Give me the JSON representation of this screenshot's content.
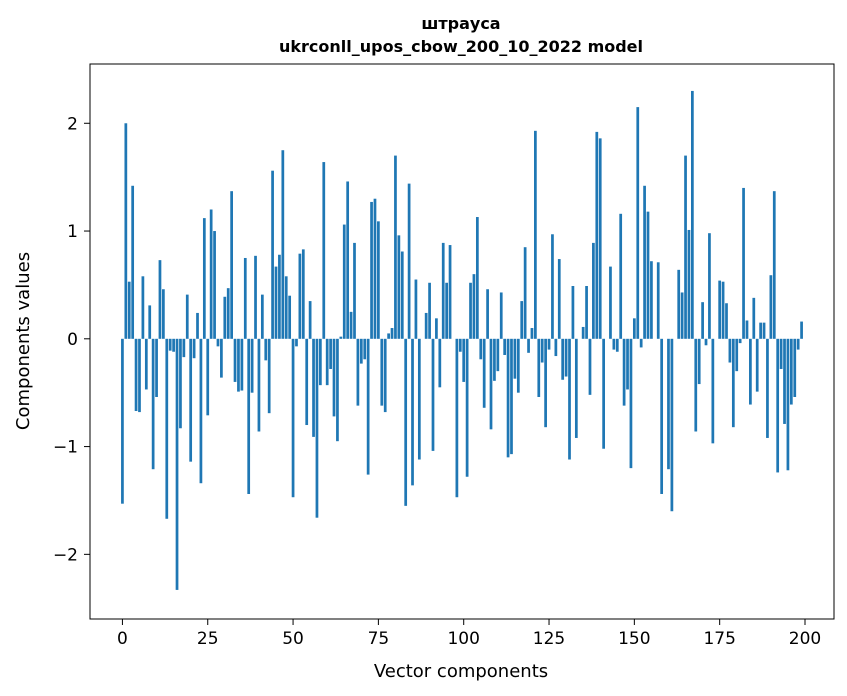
{
  "chart_data": {
    "type": "bar",
    "title_lines": [
      "штрауса",
      "ukrconll_upos_cbow_200_10_2022 model"
    ],
    "xlabel": "Vector components",
    "ylabel": "Components values",
    "xlim": [
      -9.5,
      208.5
    ],
    "ylim": [
      -2.6,
      2.55
    ],
    "xticks": [
      0,
      25,
      50,
      75,
      100,
      125,
      150,
      175,
      200
    ],
    "yticks": [
      -2,
      -1,
      0,
      1,
      2
    ],
    "ytick_labels": [
      "−2",
      "−1",
      "0",
      "1",
      "2"
    ],
    "bar_color": "#1f77b4",
    "grid": false,
    "x": [
      0,
      1,
      2,
      3,
      4,
      5,
      6,
      7,
      8,
      9,
      10,
      11,
      12,
      13,
      14,
      15,
      16,
      17,
      18,
      19,
      20,
      21,
      22,
      23,
      24,
      25,
      26,
      27,
      28,
      29,
      30,
      31,
      32,
      33,
      34,
      35,
      36,
      37,
      38,
      39,
      40,
      41,
      42,
      43,
      44,
      45,
      46,
      47,
      48,
      49,
      50,
      51,
      52,
      53,
      54,
      55,
      56,
      57,
      58,
      59,
      60,
      61,
      62,
      63,
      64,
      65,
      66,
      67,
      68,
      69,
      70,
      71,
      72,
      73,
      74,
      75,
      76,
      77,
      78,
      79,
      80,
      81,
      82,
      83,
      84,
      85,
      86,
      87,
      88,
      89,
      90,
      91,
      92,
      93,
      94,
      95,
      96,
      97,
      98,
      99,
      100,
      101,
      102,
      103,
      104,
      105,
      106,
      107,
      108,
      109,
      110,
      111,
      112,
      113,
      114,
      115,
      116,
      117,
      118,
      119,
      120,
      121,
      122,
      123,
      124,
      125,
      126,
      127,
      128,
      129,
      130,
      131,
      132,
      133,
      134,
      135,
      136,
      137,
      138,
      139,
      140,
      141,
      142,
      143,
      144,
      145,
      146,
      147,
      148,
      149,
      150,
      151,
      152,
      153,
      154,
      155,
      156,
      157,
      158,
      159,
      160,
      161,
      162,
      163,
      164,
      165,
      166,
      167,
      168,
      169,
      170,
      171,
      172,
      173,
      174,
      175,
      176,
      177,
      178,
      179,
      180,
      181,
      182,
      183,
      184,
      185,
      186,
      187,
      188,
      189,
      190,
      191,
      192,
      193,
      194,
      195,
      196,
      197,
      198,
      199
    ],
    "values": [
      -1.53,
      2.0,
      0.53,
      1.42,
      -0.67,
      -0.68,
      0.58,
      -0.47,
      0.31,
      -1.21,
      -0.54,
      0.73,
      0.46,
      -1.67,
      -0.11,
      -0.12,
      -2.33,
      -0.83,
      -0.17,
      0.41,
      -1.14,
      -0.18,
      0.24,
      -1.34,
      1.12,
      -0.71,
      1.2,
      1.0,
      -0.07,
      -0.36,
      0.39,
      0.47,
      1.37,
      -0.4,
      -0.49,
      -0.48,
      0.75,
      -1.44,
      -0.5,
      0.77,
      -0.86,
      0.41,
      -0.2,
      -0.69,
      1.56,
      0.67,
      0.78,
      1.75,
      0.58,
      0.4,
      -1.47,
      -0.07,
      0.79,
      0.83,
      -0.8,
      0.35,
      -0.91,
      -1.66,
      -0.43,
      1.64,
      -0.43,
      -0.28,
      -0.72,
      -0.95,
      0.02,
      1.06,
      1.46,
      0.25,
      0.89,
      -0.62,
      -0.23,
      -0.19,
      -1.26,
      1.27,
      1.3,
      1.09,
      -0.62,
      -0.68,
      0.05,
      0.1,
      1.7,
      0.96,
      0.81,
      -1.55,
      1.44,
      -1.36,
      0.55,
      -1.12,
      0.0,
      0.24,
      0.52,
      -1.04,
      0.19,
      -0.45,
      0.89,
      0.52,
      0.87,
      0.0,
      -1.47,
      -0.12,
      -0.4,
      -1.28,
      0.52,
      0.6,
      1.13,
      -0.19,
      -0.64,
      0.46,
      -0.84,
      -0.39,
      -0.3,
      0.43,
      -0.15,
      -1.1,
      -1.07,
      -0.37,
      -0.5,
      0.35,
      0.85,
      -0.13,
      0.1,
      1.93,
      -0.54,
      -0.22,
      -0.82,
      -0.1,
      0.97,
      -0.16,
      0.74,
      -0.38,
      -0.35,
      -1.12,
      0.49,
      -0.92,
      0.0,
      0.11,
      0.49,
      -0.52,
      0.89,
      1.92,
      1.86,
      -1.02,
      0.0,
      0.67,
      -0.1,
      -0.12,
      1.16,
      -0.62,
      -0.47,
      -1.2,
      0.19,
      2.15,
      -0.08,
      1.42,
      1.18,
      0.72,
      0.0,
      0.71,
      -1.44,
      0.0,
      -1.21,
      -1.6,
      0.0,
      0.64,
      0.43,
      1.7,
      1.01,
      2.3,
      -0.86,
      -0.42,
      0.34,
      -0.06,
      0.98,
      -0.97,
      0.0,
      0.54,
      0.53,
      0.33,
      -0.22,
      -0.82,
      -0.3,
      -0.04,
      1.4,
      0.17,
      -0.61,
      0.38,
      -0.49,
      0.15,
      0.15,
      -0.92,
      0.59,
      1.37,
      -1.24,
      -0.28,
      -0.79,
      -1.22,
      -0.61,
      -0.54,
      -0.1,
      0.16
    ]
  }
}
